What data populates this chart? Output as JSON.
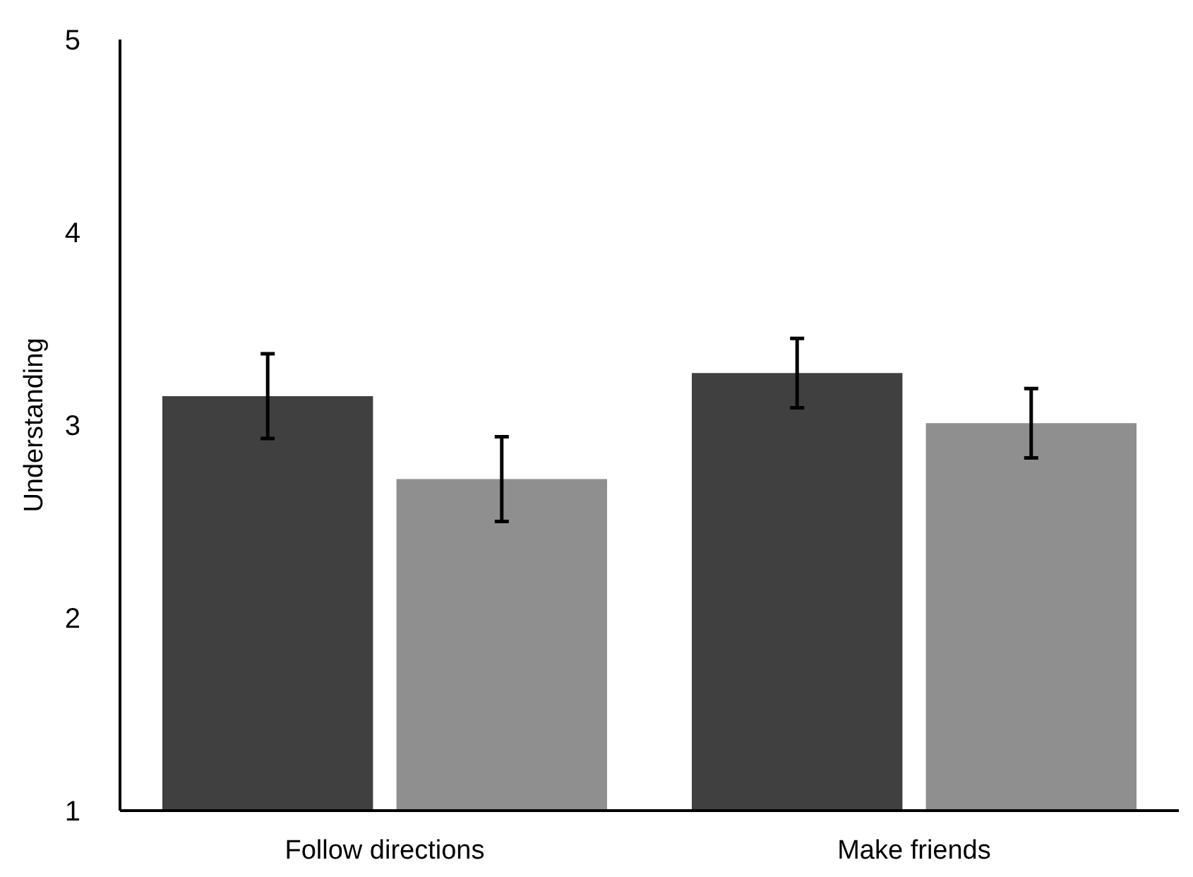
{
  "chart_data": {
    "type": "bar",
    "ylabel": "Understanding",
    "categories": [
      "Follow directions",
      "Make friends"
    ],
    "series": [
      {
        "color": "#404040",
        "values": [
          3.15,
          3.27
        ],
        "errors": [
          0.22,
          0.18
        ]
      },
      {
        "color": "#8f8f8f",
        "values": [
          2.72,
          3.01
        ],
        "errors": [
          0.22,
          0.18
        ]
      }
    ],
    "ylim": [
      1,
      5
    ],
    "yticks": [
      1,
      2,
      3,
      4,
      5
    ],
    "grid": false
  }
}
